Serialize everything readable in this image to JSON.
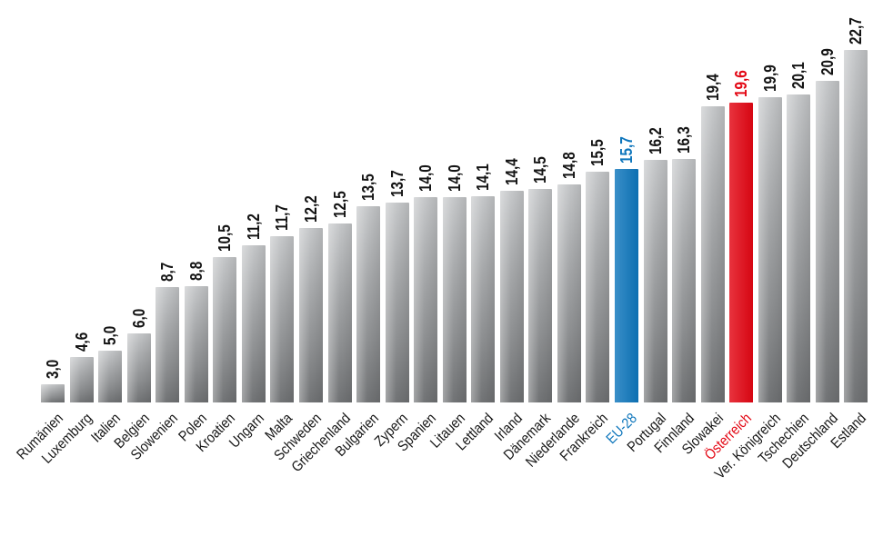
{
  "chart_data": {
    "type": "bar",
    "description": "Balkendiagramm: EU-Staaten im Vergleich, Werte in Prozent mit Dezimalkomma, aufsteigend sortiert",
    "categories": [
      "Rumänien",
      "Luxemburg",
      "Italien",
      "Belgien",
      "Slowenien",
      "Polen",
      "Kroatien",
      "Ungarn",
      "Malta",
      "Schweden",
      "Griechenland",
      "Bulgarien",
      "Zypern",
      "Spanien",
      "Litauen",
      "Lettland",
      "Irland",
      "Dänemark",
      "Niederlande",
      "Frankreich",
      "EU-28",
      "Portugal",
      "Finnland",
      "Slowakei",
      "Österreich",
      "Ver. Königreich",
      "Tschechien",
      "Deutschland",
      "Estland"
    ],
    "values": [
      3.0,
      4.6,
      5.0,
      6.0,
      8.7,
      8.8,
      10.5,
      11.2,
      11.7,
      12.2,
      12.5,
      13.5,
      13.7,
      14.0,
      14.0,
      14.1,
      14.4,
      14.5,
      14.8,
      15.5,
      15.7,
      16.2,
      16.3,
      19.4,
      19.6,
      19.9,
      20.1,
      20.9,
      22.7
    ],
    "value_labels": [
      "3,0",
      "4,6",
      "5,0",
      "6,0",
      "8,7",
      "8,8",
      "10,5",
      "11,2",
      "11,7",
      "12,2",
      "12,5",
      "13,5",
      "13,7",
      "14,0",
      "14,0",
      "14,1",
      "14,4",
      "14,5",
      "14,8",
      "15,5",
      "15,7",
      "16,2",
      "16,3",
      "19,4",
      "19,6",
      "19,9",
      "20,1",
      "20,9",
      "22,7"
    ],
    "highlighted": [
      {
        "category": "EU-28",
        "color": "#0e76bc"
      },
      {
        "category": "Österreich",
        "color": "#e30613"
      }
    ],
    "colors": {
      "bar_grey_light": "#c6c8ca",
      "bar_grey_dark": "#717375",
      "accent_blue": "#0e76bc",
      "accent_red": "#e30613",
      "text": "#141414"
    },
    "value_axis": {
      "visible": false,
      "grid": false,
      "approx_range": [
        1.9,
        22.7
      ]
    },
    "legend": "none",
    "sorted": "ascending"
  }
}
